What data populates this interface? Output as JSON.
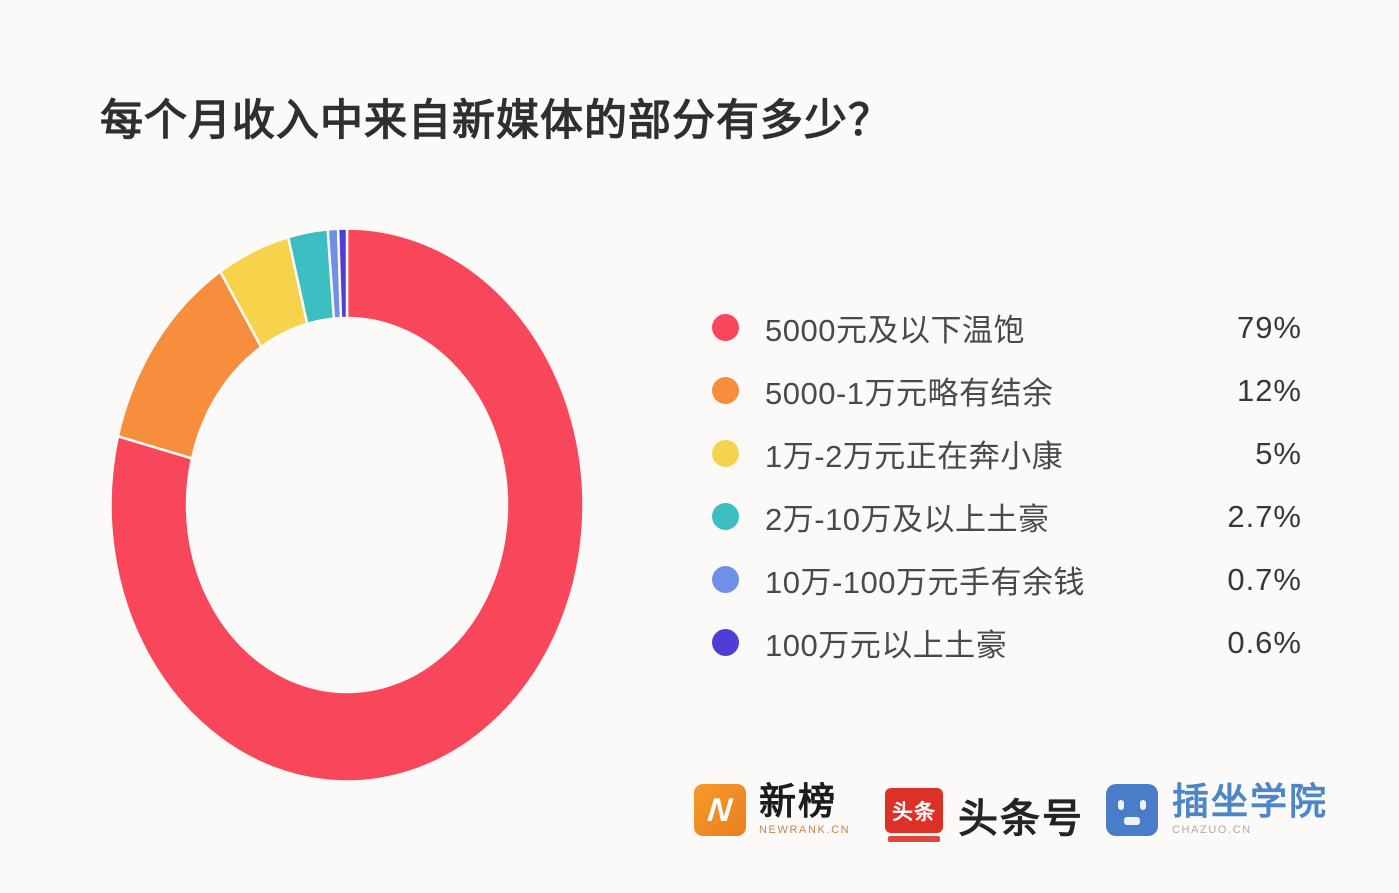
{
  "title": "每个月收入中来自新媒体的部分有多少？",
  "chart_data": {
    "type": "pie",
    "subtype": "donut",
    "title": "每个月收入中来自新媒体的部分有多少？",
    "categories": [
      "5000元及以下温饱",
      "5000-1万元略有结余",
      "1万-2万元正在奔小康",
      "2万-10万及以上土豪",
      "10万-100万元手有余钱",
      "100万元以上土豪"
    ],
    "values": [
      79,
      12,
      5,
      2.7,
      0.7,
      0.6
    ],
    "value_labels": [
      "79%",
      "12%",
      "5%",
      "2.7%",
      "0.7%",
      "0.6%"
    ],
    "colors": [
      "#F8475A",
      "#F78E3D",
      "#F7D34C",
      "#3DBEC3",
      "#7090E8",
      "#4F3ED6"
    ],
    "start_angle": "12-oclock",
    "direction": "clockwise",
    "donut_hole_ratio": 0.67,
    "legend_position": "right"
  },
  "legend": {
    "items": [
      {
        "label": "5000元及以下温饱",
        "value": "79%",
        "color": "#F8475A"
      },
      {
        "label": "5000-1万元略有结余",
        "value": "12%",
        "color": "#F78E3D"
      },
      {
        "label": "1万-2万元正在奔小康",
        "value": "5%",
        "color": "#F7D34C"
      },
      {
        "label": "2万-10万及以上土豪",
        "value": "2.7%",
        "color": "#3DBEC3"
      },
      {
        "label": "10万-100万元手有余钱",
        "value": "0.7%",
        "color": "#7090E8"
      },
      {
        "label": "100万元以上土豪",
        "value": "0.6%",
        "color": "#4F3ED6"
      }
    ]
  },
  "footer": {
    "logos": [
      {
        "icon": "newrank-logo",
        "icon_letter": "N",
        "name": "新榜",
        "subtitle": "NEWRANK.CN"
      },
      {
        "icon": "toutiao-logo",
        "icon_text": "头条",
        "name": "头条号"
      },
      {
        "icon": "chazuo-face-logo",
        "name": "插坐学院",
        "subtitle": "CHAZUO.CN"
      }
    ]
  },
  "colors": {
    "background": "#FBFAF8",
    "title_text": "#2F2F2F",
    "legend_label": "#4A4A4A",
    "legend_value": "#383838",
    "newrank_orange": "#EE8A22",
    "toutiao_red": "#DD3127",
    "chazuo_blue": "#4A7DC9"
  }
}
